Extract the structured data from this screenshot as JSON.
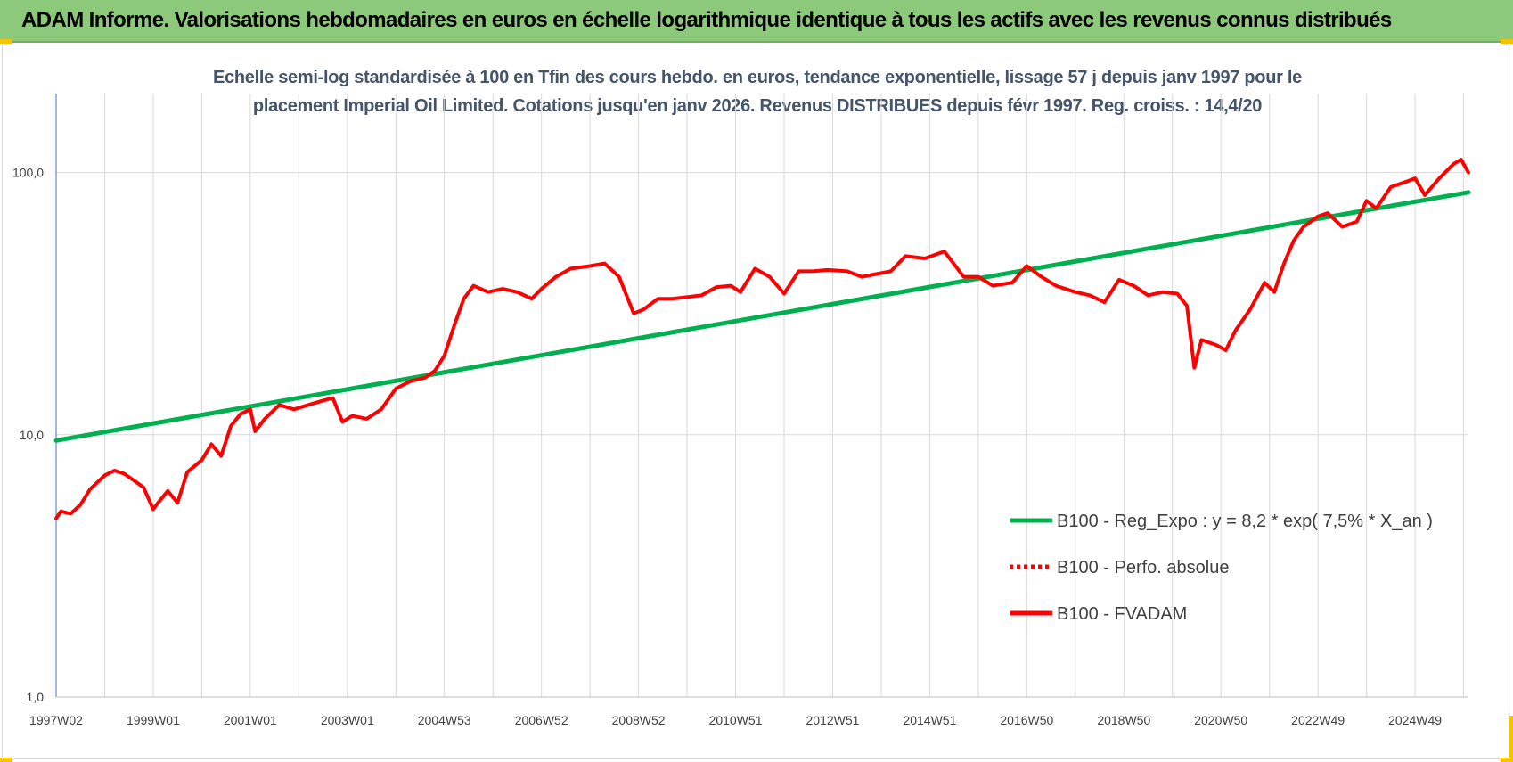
{
  "header": {
    "title": "ADAM Informe. Valorisations hebdomadaires en euros en échelle logarithmique identique à tous les actifs avec les revenus connus distribués"
  },
  "chart_data": {
    "type": "line",
    "title_line1": "Echelle semi-log standardisée à 100 en Tfin des cours hebdo. en euros, tendance exponentielle, lissage 57 j depuis janv 1997 pour le",
    "title_line2": "placement Imperial Oil Limited. Cotations jusqu'en janv 2026. Revenus DISTRIBUES depuis févr 1997. Reg. croiss. : 14,4/20",
    "y_scale": "log",
    "ylim": [
      1,
      200
    ],
    "y_ticks": [
      {
        "value": 1,
        "label": "1,0"
      },
      {
        "value": 10,
        "label": "10,0"
      },
      {
        "value": 100,
        "label": "100,0"
      }
    ],
    "xlim": [
      1997.0,
      2026.1
    ],
    "x_ticks": [
      {
        "x": 1997.0,
        "label": "1997W02"
      },
      {
        "x": 1999.0,
        "label": "1999W01"
      },
      {
        "x": 2001.0,
        "label": "2001W01"
      },
      {
        "x": 2003.0,
        "label": "2003W01"
      },
      {
        "x": 2005.0,
        "label": "2004W53"
      },
      {
        "x": 2007.0,
        "label": "2006W52"
      },
      {
        "x": 2009.0,
        "label": "2008W52"
      },
      {
        "x": 2011.0,
        "label": "2010W51"
      },
      {
        "x": 2013.0,
        "label": "2012W51"
      },
      {
        "x": 2015.0,
        "label": "2014W51"
      },
      {
        "x": 2017.0,
        "label": "2016W50"
      },
      {
        "x": 2019.0,
        "label": "2018W50"
      },
      {
        "x": 2021.0,
        "label": "2020W50"
      },
      {
        "x": 2023.0,
        "label": "2022W49"
      },
      {
        "x": 2025.0,
        "label": "2024W49"
      }
    ],
    "grid": true,
    "legend_position": "right",
    "series": [
      {
        "name": "B100 - Reg_Expo : y = 8,2 * exp( 7,5% *  X_an )",
        "color": "#00b050",
        "style": "solid",
        "points": [
          [
            1997.0,
            9.5
          ],
          [
            2026.1,
            84
          ]
        ]
      },
      {
        "name": "B100 - Perfo. absolue",
        "color": "#ff0000",
        "style": "dotted",
        "points": []
      },
      {
        "name": "B100 - FVADAM",
        "color": "#ff0000",
        "style": "solid",
        "points": [
          [
            1997.0,
            4.8
          ],
          [
            1997.1,
            5.1
          ],
          [
            1997.3,
            5.0
          ],
          [
            1997.5,
            5.4
          ],
          [
            1997.7,
            6.2
          ],
          [
            1998.0,
            7.0
          ],
          [
            1998.2,
            7.3
          ],
          [
            1998.4,
            7.1
          ],
          [
            1998.6,
            6.7
          ],
          [
            1998.8,
            6.3
          ],
          [
            1999.0,
            5.2
          ],
          [
            1999.1,
            5.5
          ],
          [
            1999.3,
            6.1
          ],
          [
            1999.5,
            5.5
          ],
          [
            1999.7,
            7.2
          ],
          [
            2000.0,
            8.0
          ],
          [
            2000.2,
            9.2
          ],
          [
            2000.4,
            8.3
          ],
          [
            2000.6,
            10.8
          ],
          [
            2000.8,
            12.0
          ],
          [
            2001.0,
            12.5
          ],
          [
            2001.1,
            10.3
          ],
          [
            2001.3,
            11.5
          ],
          [
            2001.6,
            13.0
          ],
          [
            2001.9,
            12.5
          ],
          [
            2002.2,
            13.0
          ],
          [
            2002.5,
            13.5
          ],
          [
            2002.7,
            13.8
          ],
          [
            2002.9,
            11.2
          ],
          [
            2003.1,
            11.8
          ],
          [
            2003.4,
            11.5
          ],
          [
            2003.7,
            12.5
          ],
          [
            2004.0,
            15.0
          ],
          [
            2004.3,
            16.0
          ],
          [
            2004.6,
            16.5
          ],
          [
            2004.8,
            17.5
          ],
          [
            2005.0,
            20.0
          ],
          [
            2005.2,
            26.0
          ],
          [
            2005.4,
            33.0
          ],
          [
            2005.6,
            37.0
          ],
          [
            2005.9,
            35.0
          ],
          [
            2006.2,
            36.0
          ],
          [
            2006.5,
            35.0
          ],
          [
            2006.8,
            33.0
          ],
          [
            2007.0,
            36.0
          ],
          [
            2007.3,
            40.0
          ],
          [
            2007.6,
            43.0
          ],
          [
            2008.0,
            44.0
          ],
          [
            2008.3,
            45.0
          ],
          [
            2008.6,
            40.0
          ],
          [
            2008.9,
            29.0
          ],
          [
            2009.1,
            30.0
          ],
          [
            2009.4,
            33.0
          ],
          [
            2009.7,
            33.0
          ],
          [
            2010.0,
            33.5
          ],
          [
            2010.3,
            34.0
          ],
          [
            2010.6,
            36.5
          ],
          [
            2010.9,
            37.0
          ],
          [
            2011.1,
            35.0
          ],
          [
            2011.4,
            43.0
          ],
          [
            2011.7,
            40.0
          ],
          [
            2012.0,
            34.5
          ],
          [
            2012.3,
            42.0
          ],
          [
            2012.6,
            42.0
          ],
          [
            2012.9,
            42.5
          ],
          [
            2013.3,
            42.0
          ],
          [
            2013.6,
            40.0
          ],
          [
            2013.9,
            41.0
          ],
          [
            2014.2,
            42.0
          ],
          [
            2014.5,
            48.0
          ],
          [
            2014.9,
            47.0
          ],
          [
            2015.3,
            50.0
          ],
          [
            2015.7,
            40.0
          ],
          [
            2016.0,
            40.0
          ],
          [
            2016.3,
            37.0
          ],
          [
            2016.7,
            38.0
          ],
          [
            2017.0,
            44.0
          ],
          [
            2017.3,
            40.0
          ],
          [
            2017.6,
            37.0
          ],
          [
            2018.0,
            35.0
          ],
          [
            2018.3,
            34.0
          ],
          [
            2018.6,
            32.0
          ],
          [
            2018.9,
            39.0
          ],
          [
            2019.2,
            37.0
          ],
          [
            2019.5,
            34.0
          ],
          [
            2019.8,
            35.0
          ],
          [
            2020.1,
            34.5
          ],
          [
            2020.3,
            31.0
          ],
          [
            2020.45,
            18.0
          ],
          [
            2020.6,
            23.0
          ],
          [
            2020.9,
            22.0
          ],
          [
            2021.1,
            21.0
          ],
          [
            2021.3,
            25.0
          ],
          [
            2021.6,
            30.0
          ],
          [
            2021.9,
            38.0
          ],
          [
            2022.1,
            35.0
          ],
          [
            2022.3,
            45.0
          ],
          [
            2022.5,
            55.0
          ],
          [
            2022.7,
            62.0
          ],
          [
            2023.0,
            68.0
          ],
          [
            2023.2,
            70.0
          ],
          [
            2023.5,
            62.0
          ],
          [
            2023.8,
            65.0
          ],
          [
            2024.0,
            78.0
          ],
          [
            2024.2,
            73.0
          ],
          [
            2024.5,
            88.0
          ],
          [
            2024.8,
            92.0
          ],
          [
            2025.0,
            95.0
          ],
          [
            2025.2,
            82.0
          ],
          [
            2025.5,
            95.0
          ],
          [
            2025.8,
            108.0
          ],
          [
            2025.95,
            112.0
          ],
          [
            2026.1,
            100.0
          ]
        ]
      }
    ]
  }
}
